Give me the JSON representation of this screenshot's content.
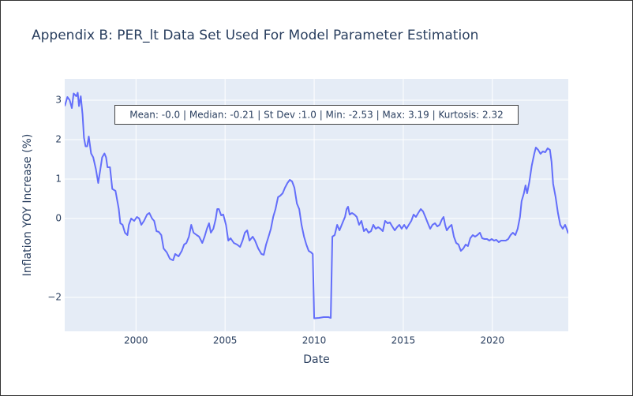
{
  "chart_data": {
    "type": "line",
    "title": "Appendix B: PER_lt Data Set Used For Model Parameter Estimation",
    "x_label": "Date",
    "y_label": "Inflation YOY Increase (%)",
    "annotation": "Mean: -0.0 | Median: -0.21 | St Dev :1.0 | Min: -2.53 | Max: 3.19 | Kurtosis: 2.32",
    "xlim": [
      1996.0,
      2024.26
    ],
    "ylim": [
      -2.86,
      3.54
    ],
    "xticks": [
      2000,
      2005,
      2010,
      2015,
      2020
    ],
    "yticks": [
      {
        "value": -2,
        "label": "−2"
      },
      0,
      1,
      2,
      3
    ],
    "grid": true,
    "series": [
      {
        "name": "PER_lt",
        "color": "#636efa",
        "x": [
          1996.0,
          1996.15,
          1996.28,
          1996.4,
          1996.5,
          1996.65,
          1996.73,
          1996.8,
          1996.9,
          1997.0,
          1997.08,
          1997.17,
          1997.26,
          1997.35,
          1997.48,
          1997.6,
          1997.75,
          1997.88,
          1998.0,
          1998.1,
          1998.23,
          1998.32,
          1998.4,
          1998.54,
          1998.67,
          1998.85,
          1999.03,
          1999.12,
          1999.25,
          1999.38,
          1999.52,
          1999.6,
          1999.73,
          1999.9,
          2000.05,
          2000.18,
          2000.3,
          2000.45,
          2000.62,
          2000.75,
          2000.9,
          2001.02,
          2001.15,
          2001.28,
          2001.42,
          2001.55,
          2001.73,
          2001.9,
          2002.08,
          2002.2,
          2002.39,
          2002.57,
          2002.7,
          2002.83,
          2002.97,
          2003.1,
          2003.23,
          2003.41,
          2003.54,
          2003.72,
          2003.85,
          2003.98,
          2004.1,
          2004.2,
          2004.34,
          2004.47,
          2004.56,
          2004.65,
          2004.78,
          2004.9,
          2005.05,
          2005.18,
          2005.31,
          2005.49,
          2005.67,
          2005.84,
          2005.98,
          2006.11,
          2006.24,
          2006.37,
          2006.55,
          2006.68,
          2006.86,
          2007.04,
          2007.17,
          2007.3,
          2007.44,
          2007.57,
          2007.7,
          2007.83,
          2007.97,
          2008.1,
          2008.23,
          2008.36,
          2008.5,
          2008.63,
          2008.76,
          2008.89,
          2009.03,
          2009.16,
          2009.29,
          2009.43,
          2009.56,
          2009.69,
          2009.83,
          2009.92,
          2010.0,
          2010.27,
          2010.53,
          2010.8,
          2010.93,
          2011.02,
          2011.15,
          2011.29,
          2011.42,
          2011.6,
          2011.73,
          2011.82,
          2011.9,
          2011.99,
          2012.12,
          2012.26,
          2012.39,
          2012.52,
          2012.65,
          2012.79,
          2012.92,
          2013.05,
          2013.19,
          2013.32,
          2013.45,
          2013.59,
          2013.72,
          2013.85,
          2013.98,
          2014.12,
          2014.25,
          2014.38,
          2014.52,
          2014.65,
          2014.78,
          2014.91,
          2015.05,
          2015.18,
          2015.31,
          2015.45,
          2015.58,
          2015.71,
          2015.84,
          2015.98,
          2016.11,
          2016.24,
          2016.38,
          2016.51,
          2016.64,
          2016.78,
          2016.91,
          2017.04,
          2017.17,
          2017.26,
          2017.35,
          2017.44,
          2017.57,
          2017.71,
          2017.84,
          2017.97,
          2018.1,
          2018.23,
          2018.37,
          2018.5,
          2018.63,
          2018.76,
          2018.9,
          2019.03,
          2019.16,
          2019.3,
          2019.43,
          2019.56,
          2019.7,
          2019.83,
          2019.96,
          2020.09,
          2020.22,
          2020.36,
          2020.49,
          2020.62,
          2020.75,
          2020.89,
          2021.02,
          2021.15,
          2021.29,
          2021.42,
          2021.55,
          2021.64,
          2021.77,
          2021.86,
          2021.95,
          2022.08,
          2022.21,
          2022.35,
          2022.44,
          2022.57,
          2022.7,
          2022.83,
          2022.97,
          2023.1,
          2023.23,
          2023.32,
          2023.41,
          2023.55,
          2023.68,
          2023.81,
          2023.95,
          2024.08,
          2024.17,
          2024.26
        ],
        "values": [
          2.85,
          3.08,
          3.0,
          2.8,
          3.17,
          3.1,
          3.19,
          2.85,
          3.1,
          2.64,
          2.05,
          1.83,
          1.83,
          2.08,
          1.65,
          1.55,
          1.25,
          0.9,
          1.25,
          1.55,
          1.65,
          1.55,
          1.3,
          1.3,
          0.75,
          0.7,
          0.25,
          -0.12,
          -0.16,
          -0.36,
          -0.42,
          -0.16,
          0.0,
          -0.06,
          0.04,
          0.0,
          -0.16,
          -0.06,
          0.1,
          0.14,
          0.0,
          -0.06,
          -0.32,
          -0.34,
          -0.42,
          -0.76,
          -0.86,
          -1.02,
          -1.06,
          -0.9,
          -0.96,
          -0.82,
          -0.66,
          -0.62,
          -0.46,
          -0.16,
          -0.36,
          -0.42,
          -0.46,
          -0.62,
          -0.46,
          -0.26,
          -0.12,
          -0.36,
          -0.26,
          -0.02,
          0.24,
          0.24,
          0.08,
          0.1,
          -0.16,
          -0.56,
          -0.5,
          -0.62,
          -0.66,
          -0.72,
          -0.56,
          -0.36,
          -0.3,
          -0.56,
          -0.46,
          -0.56,
          -0.76,
          -0.9,
          -0.92,
          -0.66,
          -0.46,
          -0.26,
          0.04,
          0.24,
          0.54,
          0.58,
          0.64,
          0.78,
          0.9,
          0.98,
          0.94,
          0.78,
          0.38,
          0.24,
          -0.16,
          -0.46,
          -0.66,
          -0.82,
          -0.86,
          -0.9,
          -2.53,
          -2.52,
          -2.5,
          -2.5,
          -2.52,
          -0.46,
          -0.42,
          -0.16,
          -0.3,
          -0.1,
          0.04,
          0.24,
          0.3,
          0.1,
          0.14,
          0.1,
          0.04,
          -0.16,
          -0.06,
          -0.32,
          -0.26,
          -0.36,
          -0.32,
          -0.16,
          -0.26,
          -0.22,
          -0.26,
          -0.32,
          -0.06,
          -0.12,
          -0.1,
          -0.2,
          -0.3,
          -0.22,
          -0.16,
          -0.26,
          -0.16,
          -0.26,
          -0.16,
          -0.06,
          0.1,
          0.04,
          0.14,
          0.24,
          0.18,
          0.04,
          -0.12,
          -0.26,
          -0.16,
          -0.12,
          -0.2,
          -0.16,
          -0.02,
          0.04,
          -0.16,
          -0.3,
          -0.22,
          -0.16,
          -0.46,
          -0.62,
          -0.66,
          -0.82,
          -0.76,
          -0.66,
          -0.7,
          -0.5,
          -0.42,
          -0.46,
          -0.42,
          -0.36,
          -0.5,
          -0.52,
          -0.52,
          -0.56,
          -0.52,
          -0.56,
          -0.54,
          -0.6,
          -0.56,
          -0.56,
          -0.56,
          -0.52,
          -0.42,
          -0.36,
          -0.42,
          -0.26,
          0.04,
          0.44,
          0.64,
          0.84,
          0.64,
          0.94,
          1.34,
          1.64,
          1.8,
          1.74,
          1.64,
          1.7,
          1.68,
          1.78,
          1.74,
          1.44,
          0.88,
          0.54,
          0.14,
          -0.16,
          -0.26,
          -0.16,
          -0.26,
          -0.38
        ]
      }
    ]
  }
}
